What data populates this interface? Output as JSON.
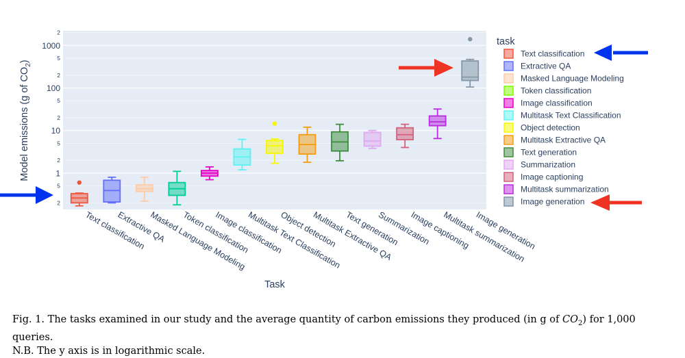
{
  "chart_data": {
    "type": "box",
    "ylabel_main": "Model emissions (g of CO",
    "ylabel_sub": "2",
    "ylabel_tail": ")",
    "xlabel": "Task",
    "yscale": "log",
    "ylim": [
      0.14,
      2200
    ],
    "legend_title": "task",
    "legend_placement": "right",
    "y_major_ticks": [
      {
        "v": 1,
        "label": "1"
      },
      {
        "v": 10,
        "label": "10"
      },
      {
        "v": 100,
        "label": "100"
      },
      {
        "v": 1000,
        "label": "1000"
      }
    ],
    "y_minor_ticks": [
      {
        "v": 0.2,
        "label": "2"
      },
      {
        "v": 0.5,
        "label": "5"
      },
      {
        "v": 2,
        "label": "2"
      },
      {
        "v": 5,
        "label": "5"
      },
      {
        "v": 20,
        "label": "2"
      },
      {
        "v": 50,
        "label": "5"
      },
      {
        "v": 200,
        "label": "2"
      },
      {
        "v": 500,
        "label": "5"
      },
      {
        "v": 2000,
        "label": "2"
      }
    ],
    "series": [
      {
        "name": "Text classification",
        "color": "#EF553B",
        "min": 0.17,
        "q1": 0.2,
        "median": 0.26,
        "q3": 0.33,
        "max": 0.34,
        "outliers": [
          0.6
        ]
      },
      {
        "name": "Extractive QA",
        "color": "#636EFA",
        "min": 0.2,
        "q1": 0.21,
        "median": 0.39,
        "q3": 0.68,
        "max": 0.8,
        "outliers": []
      },
      {
        "name": "Masked Language Modeling",
        "color": "#FFCBA4",
        "min": 0.22,
        "q1": 0.37,
        "median": 0.43,
        "q3": 0.53,
        "max": 0.8,
        "outliers": []
      },
      {
        "name": "Token classification",
        "color": "#00CC96",
        "legend_color": "#7CFC00",
        "min": 0.18,
        "q1": 0.3,
        "median": 0.43,
        "q3": 0.6,
        "max": 1.1,
        "outliers": []
      },
      {
        "name": "Image classification",
        "color": "#E600C8",
        "min": 0.7,
        "q1": 0.85,
        "median": 1.0,
        "q3": 1.15,
        "max": 1.4,
        "outliers": []
      },
      {
        "name": "Multitask Text Classification",
        "color": "#5CF2F2",
        "min": 1.2,
        "q1": 1.55,
        "median": 2.4,
        "q3": 3.7,
        "max": 6.2,
        "outliers": []
      },
      {
        "name": "Object detection",
        "color": "#F7F700",
        "min": 1.7,
        "q1": 2.9,
        "median": 4.4,
        "q3": 5.8,
        "max": 6.3,
        "outliers": [
          14.5
        ]
      },
      {
        "name": "Multitask Extractive QA",
        "color": "#F39C12",
        "min": 1.8,
        "q1": 2.8,
        "median": 4.7,
        "q3": 8.0,
        "max": 12.0,
        "outliers": []
      },
      {
        "name": "Text generation",
        "color": "#3D8B3D",
        "min": 1.95,
        "q1": 3.3,
        "median": 5.4,
        "q3": 9.3,
        "max": 14.0,
        "outliers": []
      },
      {
        "name": "Summarization",
        "color": "#E0A8F0",
        "min": 3.8,
        "q1": 4.3,
        "median": 5.7,
        "q3": 9.0,
        "max": 10.0,
        "outliers": []
      },
      {
        "name": "Image captioning",
        "color": "#D4607A",
        "min": 4.0,
        "q1": 6.1,
        "median": 8.0,
        "q3": 11.6,
        "max": 14.0,
        "outliers": []
      },
      {
        "name": "Multitask summarization",
        "color": "#B92AE0",
        "min": 6.5,
        "q1": 13.0,
        "median": 16.0,
        "q3": 22.0,
        "max": 32.0,
        "outliers": []
      },
      {
        "name": "Image generation",
        "color": "#8497A6",
        "legend_color": "#7F93A8",
        "min": 105,
        "q1": 150,
        "median": 180,
        "q3": 430,
        "max": 470,
        "outliers": [
          1400
        ]
      }
    ]
  },
  "annotations": {
    "arrow_blue": "#0033EE",
    "arrow_red": "#EE3322"
  },
  "caption": {
    "line1_a": "Fig. 1.  The tasks examined in our study and the average quantity of carbon emissions they produced (in g of ",
    "line1_co": "CO",
    "line1_sub": "2",
    "line1_b": ") for 1,000 queries.",
    "line2": "N.B. The y axis is in logarithmic scale."
  }
}
